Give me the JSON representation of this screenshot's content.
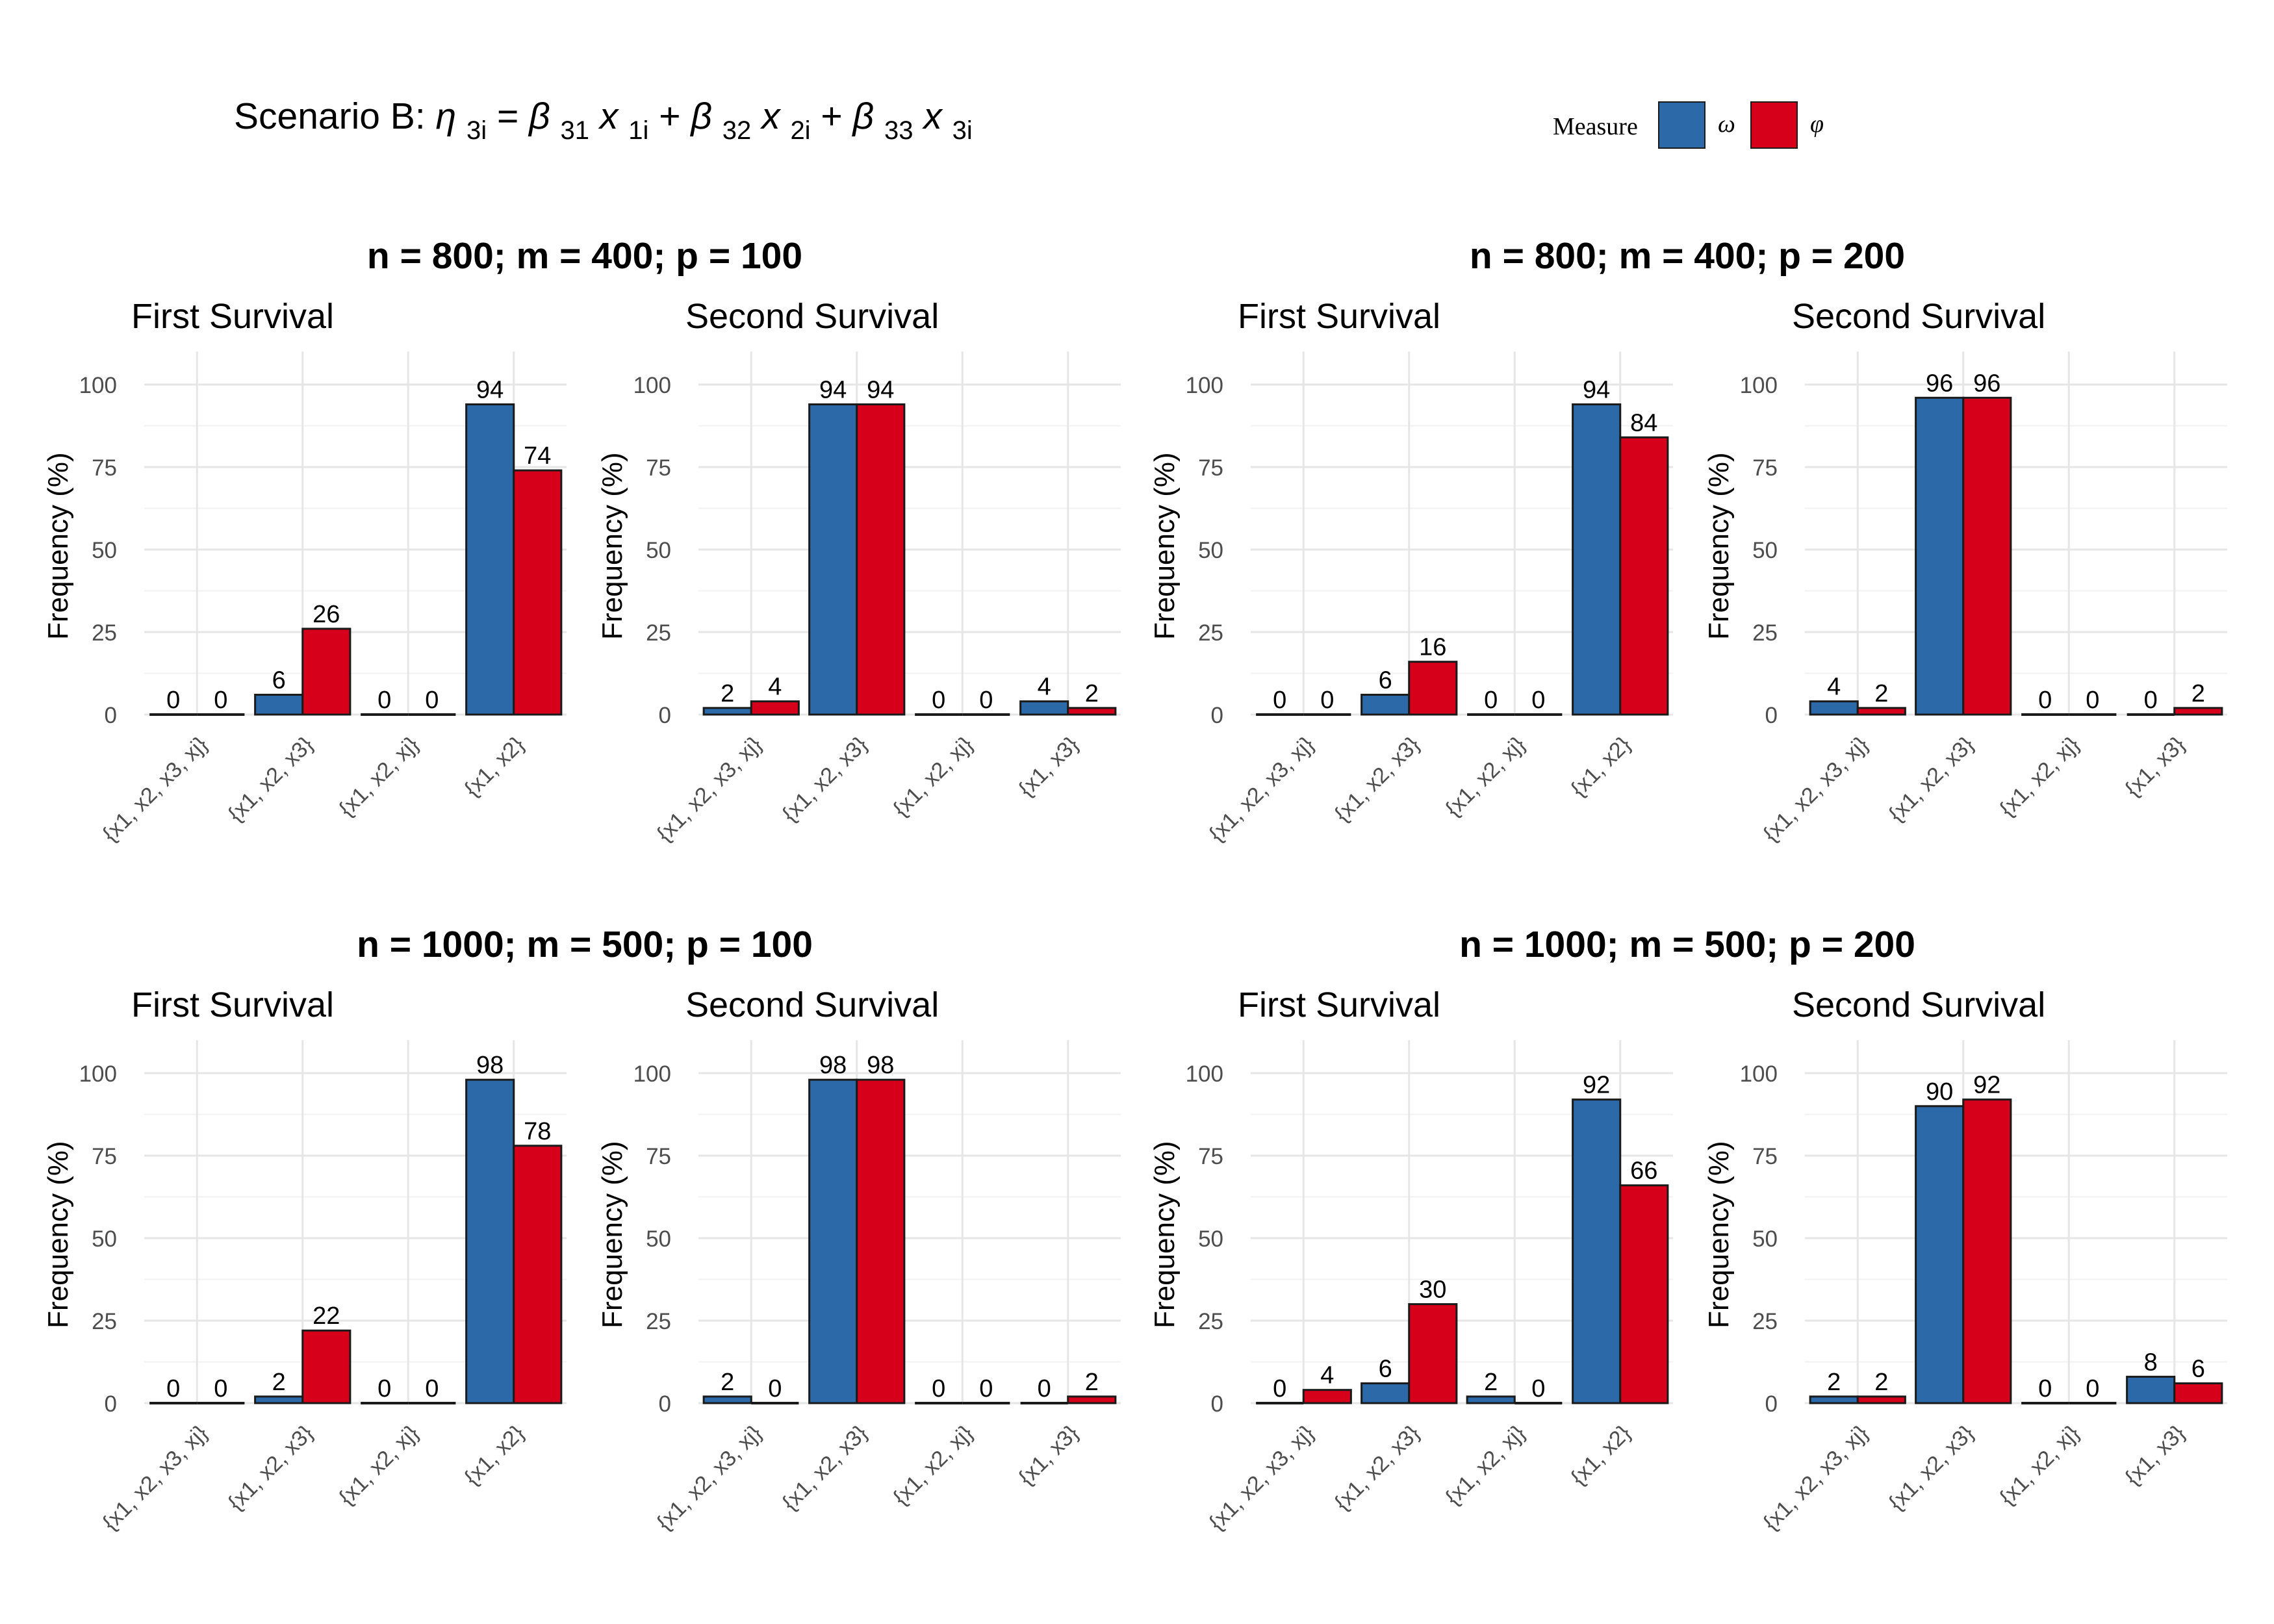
{
  "title": {
    "prefix": "Scenario B: ",
    "eta": "η",
    "eta_sub": "3i",
    "eq": " = ",
    "beta": "β",
    "x": "x",
    "plus": " + ",
    "terms": [
      {
        "beta_sub": "31",
        "x_sub": "1i"
      },
      {
        "beta_sub": "32",
        "x_sub": "2i"
      },
      {
        "beta_sub": "33",
        "x_sub": "3i"
      }
    ]
  },
  "legend": {
    "title": "Measure",
    "items": [
      {
        "label": "ω",
        "color": "#2B69A8"
      },
      {
        "label": "φ",
        "color": "#D7001B"
      }
    ]
  },
  "colors": {
    "omega": "#2B69A8",
    "phi": "#D7001B",
    "grid": "#E6E6E6"
  },
  "chart_data": [
    {
      "group": "n = 800; m = 400; p = 100",
      "panel": "First Survival",
      "type": "bar",
      "categories": [
        "{x1, x2, x3, xj}",
        "{x1, x2, x3}",
        "{x1, x2, xj}",
        "{x1, x2}"
      ],
      "series": [
        {
          "name": "ω",
          "values": [
            0,
            6,
            0,
            94
          ]
        },
        {
          "name": "φ",
          "values": [
            0,
            26,
            0,
            74
          ]
        }
      ],
      "ylabel": "Frequency (%)",
      "yticks": [
        0,
        25,
        50,
        75,
        100
      ],
      "ylim": [
        0,
        110
      ]
    },
    {
      "group": "n = 800; m = 400; p = 100",
      "panel": "Second Survival",
      "type": "bar",
      "categories": [
        "{x1, x2, x3, xj}",
        "{x1, x2, x3}",
        "{x1, x2, xj}",
        "{x1, x3}"
      ],
      "series": [
        {
          "name": "ω",
          "values": [
            2,
            94,
            0,
            4
          ]
        },
        {
          "name": "φ",
          "values": [
            4,
            94,
            0,
            2
          ]
        }
      ],
      "ylabel": "Frequency (%)",
      "yticks": [
        0,
        25,
        50,
        75,
        100
      ],
      "ylim": [
        0,
        110
      ]
    },
    {
      "group": "n = 800; m = 400; p = 200",
      "panel": "First Survival",
      "type": "bar",
      "categories": [
        "{x1, x2, x3, xj}",
        "{x1, x2, x3}",
        "{x1, x2, xj}",
        "{x1, x2}"
      ],
      "series": [
        {
          "name": "ω",
          "values": [
            0,
            6,
            0,
            94
          ]
        },
        {
          "name": "φ",
          "values": [
            0,
            16,
            0,
            84
          ]
        }
      ],
      "ylabel": "Frequency (%)",
      "yticks": [
        0,
        25,
        50,
        75,
        100
      ],
      "ylim": [
        0,
        110
      ]
    },
    {
      "group": "n = 800; m = 400; p = 200",
      "panel": "Second Survival",
      "type": "bar",
      "categories": [
        "{x1, x2, x3, xj}",
        "{x1, x2, x3}",
        "{x1, x2, xj}",
        "{x1, x3}"
      ],
      "series": [
        {
          "name": "ω",
          "values": [
            4,
            96,
            0,
            0
          ]
        },
        {
          "name": "φ",
          "values": [
            2,
            96,
            0,
            2
          ]
        }
      ],
      "ylabel": "Frequency (%)",
      "yticks": [
        0,
        25,
        50,
        75,
        100
      ],
      "ylim": [
        0,
        110
      ]
    },
    {
      "group": "n = 1000; m = 500; p = 100",
      "panel": "First Survival",
      "type": "bar",
      "categories": [
        "{x1, x2, x3, xj}",
        "{x1, x2, x3}",
        "{x1, x2, xj}",
        "{x1, x2}"
      ],
      "series": [
        {
          "name": "ω",
          "values": [
            0,
            2,
            0,
            98
          ]
        },
        {
          "name": "φ",
          "values": [
            0,
            22,
            0,
            78
          ]
        }
      ],
      "ylabel": "Frequency (%)",
      "yticks": [
        0,
        25,
        50,
        75,
        100
      ],
      "ylim": [
        0,
        110
      ]
    },
    {
      "group": "n = 1000; m = 500; p = 100",
      "panel": "Second Survival",
      "type": "bar",
      "categories": [
        "{x1, x2, x3, xj}",
        "{x1, x2, x3}",
        "{x1, x2, xj}",
        "{x1, x3}"
      ],
      "series": [
        {
          "name": "ω",
          "values": [
            2,
            98,
            0,
            0
          ]
        },
        {
          "name": "φ",
          "values": [
            0,
            98,
            0,
            2
          ]
        }
      ],
      "ylabel": "Frequency (%)",
      "yticks": [
        0,
        25,
        50,
        75,
        100
      ],
      "ylim": [
        0,
        110
      ]
    },
    {
      "group": "n = 1000; m = 500; p = 200",
      "panel": "First Survival",
      "type": "bar",
      "categories": [
        "{x1, x2, x3, xj}",
        "{x1, x2, x3}",
        "{x1, x2, xj}",
        "{x1, x2}"
      ],
      "series": [
        {
          "name": "ω",
          "values": [
            0,
            6,
            2,
            92
          ]
        },
        {
          "name": "φ",
          "values": [
            4,
            30,
            0,
            66
          ]
        }
      ],
      "ylabel": "Frequency (%)",
      "yticks": [
        0,
        25,
        50,
        75,
        100
      ],
      "ylim": [
        0,
        110
      ]
    },
    {
      "group": "n = 1000; m = 500; p = 200",
      "panel": "Second Survival",
      "type": "bar",
      "categories": [
        "{x1, x2, x3, xj}",
        "{x1, x2, x3}",
        "{x1, x2, xj}",
        "{x1, x3}"
      ],
      "series": [
        {
          "name": "ω",
          "values": [
            2,
            90,
            0,
            8
          ]
        },
        {
          "name": "φ",
          "values": [
            2,
            92,
            0,
            6
          ]
        }
      ],
      "ylabel": "Frequency (%)",
      "yticks": [
        0,
        25,
        50,
        75,
        100
      ],
      "ylim": [
        0,
        110
      ]
    }
  ]
}
